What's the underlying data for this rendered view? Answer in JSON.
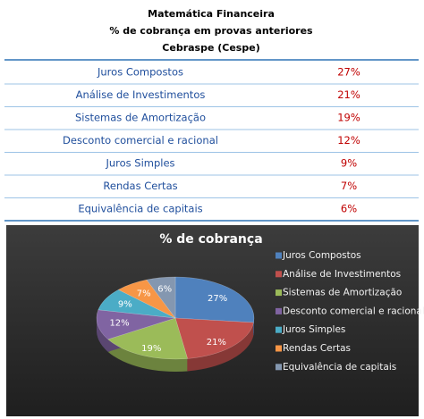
{
  "table": {
    "header": [
      "Matemática Financeira",
      "% de cobrança em provas anteriores",
      "Cebraspe (Cespe)"
    ],
    "rows": [
      [
        "Juros Compostos",
        "27%"
      ],
      [
        "Análise de Investimentos",
        "21%"
      ],
      [
        "Sistemas de Amortização",
        "19%"
      ],
      [
        "Desconto comercial e racional",
        "12%"
      ],
      [
        "Juros Simples",
        "9%"
      ],
      [
        "Rendas Certas",
        "7%"
      ],
      [
        "Equivalência de capitais",
        "6%"
      ]
    ]
  },
  "chart_data": {
    "type": "pie",
    "title": "% de cobrança",
    "categories": [
      "Juros Compostos",
      "Análise de Investimentos",
      "Sistemas de Amortização",
      "Desconto comercial e racional",
      "Juros Simples",
      "Rendas Certas",
      "Equivalência de capitais"
    ],
    "values": [
      27,
      21,
      19,
      12,
      9,
      7,
      6
    ],
    "value_labels": [
      "27%",
      "21%",
      "19%",
      "12%",
      "9%",
      "7%",
      "6%"
    ],
    "colors": [
      "#4f81bd",
      "#c0504d",
      "#9bbb59",
      "#8064a2",
      "#4bacc6",
      "#f79646",
      "#8497b0"
    ],
    "legend": "right"
  }
}
